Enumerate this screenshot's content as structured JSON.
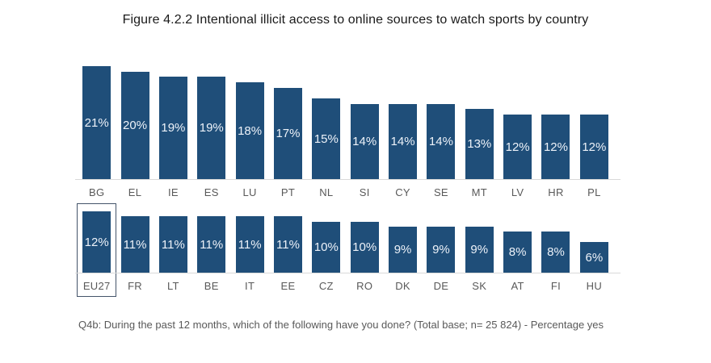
{
  "title": "Figure 4.2.2 Intentional illicit access to online sources to watch sports by country",
  "footnote": "Q4b: During the past 12 months, which of the following have you done? (Total base; n= 25 824) -  Percentage yes",
  "colors": {
    "bar": "#1f4e79",
    "bar_value_label": "#edf2f9",
    "category_label": "#595959",
    "baseline": "#d9d9d9",
    "highlight_border": "#44546a",
    "title": "#1a1a1a"
  },
  "chart_data": [
    {
      "type": "bar",
      "panel": "top",
      "categories": [
        "BG",
        "EL",
        "IE",
        "ES",
        "LU",
        "PT",
        "NL",
        "SI",
        "CY",
        "SE",
        "MT",
        "LV",
        "HR",
        "PL"
      ],
      "values": [
        21,
        20,
        19,
        19,
        18,
        17,
        15,
        14,
        14,
        14,
        13,
        12,
        12,
        12
      ],
      "value_suffix": "%",
      "ylim": [
        0,
        21
      ],
      "grid": false,
      "legend": false,
      "bar_color": "#1f4e79",
      "label_position": "inside-center"
    },
    {
      "type": "bar",
      "panel": "bottom",
      "categories": [
        "EU27",
        "FR",
        "LT",
        "BE",
        "IT",
        "EE",
        "CZ",
        "RO",
        "DK",
        "DE",
        "SK",
        "AT",
        "FI",
        "HU"
      ],
      "values": [
        12,
        11,
        11,
        11,
        11,
        11,
        10,
        10,
        9,
        9,
        9,
        8,
        8,
        6
      ],
      "value_suffix": "%",
      "ylim": [
        0,
        12
      ],
      "grid": false,
      "legend": false,
      "bar_color": "#1f4e79",
      "highlighted_category": "EU27",
      "label_position": "inside-center"
    }
  ]
}
